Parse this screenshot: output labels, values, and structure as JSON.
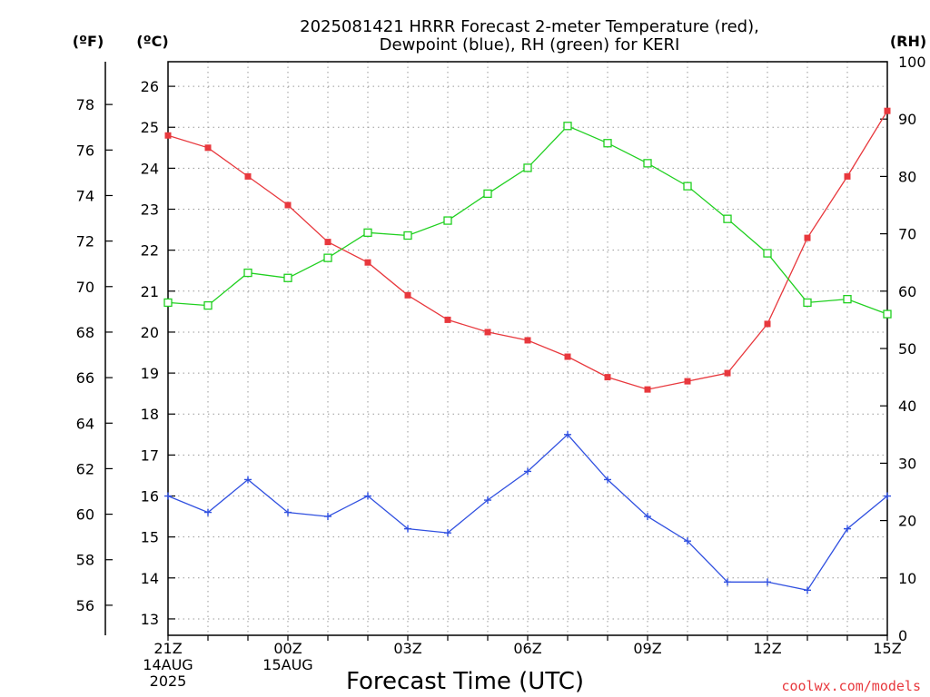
{
  "chart_data": {
    "type": "line",
    "title_lines": [
      "2025081421 HRRR Forecast 2-meter Temperature (red),",
      "Dewpoint (blue), RH (green) for KERI"
    ],
    "xlabel": "Forecast Time (UTC)",
    "credit": "coolwx.com/models",
    "units": {
      "fahrenheit": "(ºF)",
      "celsius": "(ºC)",
      "rh": "(RH)"
    },
    "x_hours": [
      0,
      1,
      2,
      3,
      4,
      5,
      6,
      7,
      8,
      9,
      10,
      11,
      12,
      13,
      14,
      15,
      16,
      17,
      18
    ],
    "x_ticks": [
      {
        "hour": 0,
        "lines": [
          "21Z",
          "14AUG",
          "2025"
        ]
      },
      {
        "hour": 3,
        "lines": [
          "00Z",
          "15AUG"
        ]
      },
      {
        "hour": 6,
        "lines": [
          "03Z"
        ]
      },
      {
        "hour": 9,
        "lines": [
          "06Z"
        ]
      },
      {
        "hour": 12,
        "lines": [
          "09Z"
        ]
      },
      {
        "hour": 15,
        "lines": [
          "12Z"
        ]
      },
      {
        "hour": 18,
        "lines": [
          "15Z"
        ]
      }
    ],
    "celsius_axis": {
      "min": 12.6,
      "max": 26.6,
      "ticks": [
        13,
        14,
        15,
        16,
        17,
        18,
        19,
        20,
        21,
        22,
        23,
        24,
        25,
        26
      ]
    },
    "fahrenheit_axis": {
      "ticks": [
        56,
        58,
        60,
        62,
        64,
        66,
        68,
        70,
        72,
        74,
        76,
        78
      ]
    },
    "rh_axis": {
      "min": 0,
      "max": 100,
      "ticks": [
        0,
        10,
        20,
        30,
        40,
        50,
        60,
        70,
        80,
        90,
        100
      ]
    },
    "grid": true,
    "series": [
      {
        "name": "Temperature",
        "axis": "celsius",
        "color": "#e8383d",
        "marker": "filled-square",
        "values": [
          24.8,
          24.5,
          23.8,
          23.1,
          22.2,
          21.7,
          20.9,
          20.3,
          20.0,
          19.8,
          19.4,
          18.9,
          18.6,
          18.8,
          19.0,
          20.2,
          22.3,
          23.8,
          25.4
        ]
      },
      {
        "name": "Dewpoint",
        "axis": "celsius",
        "color": "#3050e0",
        "marker": "plus",
        "values": [
          16.0,
          15.6,
          16.4,
          15.6,
          15.5,
          16.0,
          15.2,
          15.1,
          15.9,
          16.6,
          17.5,
          16.4,
          15.5,
          14.9,
          13.9,
          13.9,
          13.7,
          15.2,
          16.0
        ]
      },
      {
        "name": "RH",
        "axis": "rh",
        "color": "#20d020",
        "marker": "open-square",
        "values": [
          58.0,
          57.5,
          63.2,
          62.3,
          65.8,
          70.2,
          69.7,
          72.3,
          77.0,
          81.5,
          88.8,
          85.8,
          82.3,
          78.3,
          72.6,
          66.6,
          58.0,
          58.6,
          56.0
        ]
      }
    ]
  }
}
